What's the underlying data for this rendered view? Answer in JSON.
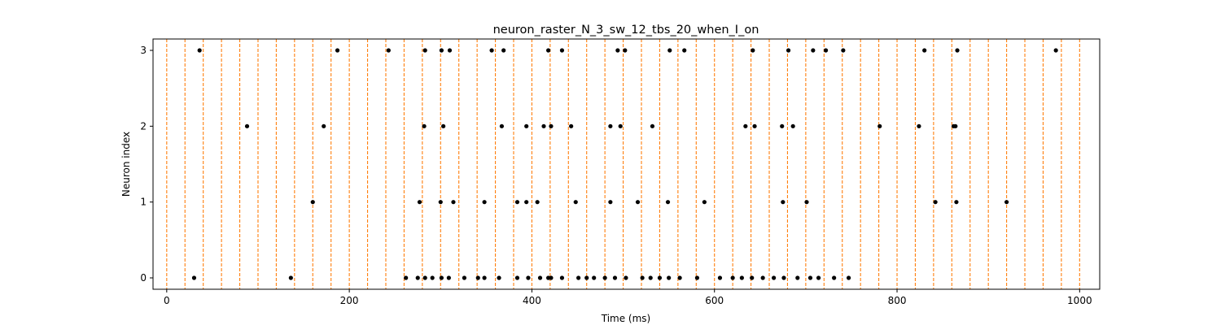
{
  "chart_data": {
    "type": "scatter",
    "title": "neuron_raster_N_3_sw_12_tbs_20_when_I_on",
    "xlabel": "Time (ms)",
    "ylabel": "Neuron index",
    "xlim": [
      -15,
      1022
    ],
    "ylim": [
      -0.15,
      3.15
    ],
    "x_ticks": [
      0,
      200,
      400,
      600,
      800,
      1000
    ],
    "y_ticks": [
      0,
      1,
      2,
      3
    ],
    "marker_color": "#000000",
    "vline_color": "#ff7f0e",
    "vline_style": "dashed",
    "vlines": [
      0,
      20,
      40,
      60,
      80,
      100,
      120,
      140,
      160,
      180,
      200,
      220,
      240,
      260,
      280,
      300,
      320,
      340,
      360,
      380,
      400,
      420,
      440,
      460,
      480,
      500,
      520,
      540,
      560,
      580,
      600,
      620,
      640,
      660,
      680,
      700,
      720,
      740,
      760,
      780,
      800,
      820,
      840,
      860,
      880,
      900,
      920,
      940,
      960,
      980,
      1000
    ],
    "series": [
      {
        "neuron": 0,
        "x": [
          30,
          136,
          262,
          275,
          283,
          291,
          301,
          309,
          326,
          341,
          348,
          364,
          384,
          396,
          409,
          418,
          421,
          433,
          451,
          460,
          468,
          480,
          491,
          503,
          521,
          530,
          540,
          550,
          562,
          581,
          606,
          620,
          630,
          641,
          653,
          665,
          676,
          691,
          705,
          714,
          731,
          747
        ]
      },
      {
        "neuron": 1,
        "x": [
          160,
          277,
          300,
          314,
          348,
          384,
          394,
          406,
          448,
          486,
          516,
          549,
          589,
          675,
          701,
          842,
          865,
          920
        ]
      },
      {
        "neuron": 2,
        "x": [
          88,
          172,
          282,
          303,
          367,
          394,
          413,
          421,
          443,
          486,
          497,
          532,
          634,
          644,
          674,
          686,
          781,
          824,
          862,
          864
        ]
      },
      {
        "neuron": 3,
        "x": [
          36,
          187,
          243,
          283,
          301,
          310,
          356,
          369,
          418,
          433,
          494,
          502,
          551,
          567,
          642,
          681,
          708,
          722,
          741,
          830,
          866,
          974
        ]
      }
    ]
  }
}
